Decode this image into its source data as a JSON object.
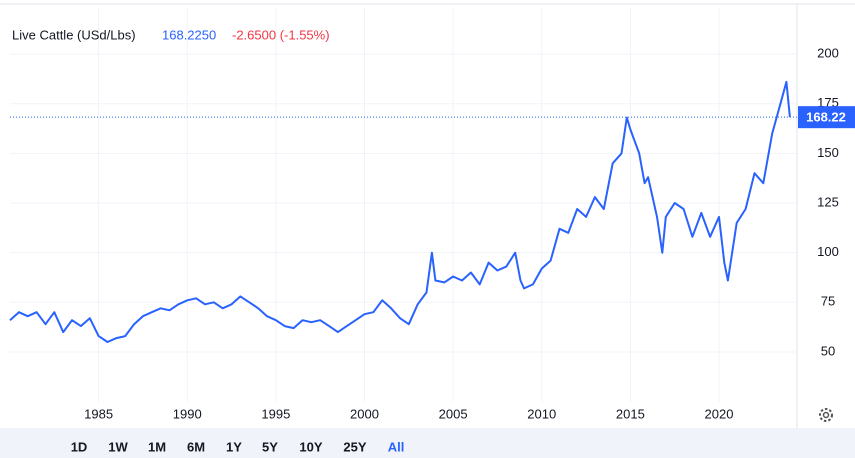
{
  "chart_data": {
    "type": "line",
    "title": "Live Cattle (USd/Lbs)",
    "quote_price": "168.2250",
    "quote_change": "-2.6500 (-1.55%)",
    "x": [
      1980,
      1980.5,
      1981,
      1981.5,
      1982,
      1982.5,
      1983,
      1983.5,
      1984,
      1984.5,
      1985,
      1985.5,
      1986,
      1986.5,
      1987,
      1987.5,
      1988,
      1988.5,
      1989,
      1989.5,
      1990,
      1990.5,
      1991,
      1991.5,
      1992,
      1992.5,
      1993,
      1993.5,
      1994,
      1994.5,
      1995,
      1995.5,
      1996,
      1996.5,
      1997,
      1997.5,
      1998,
      1998.5,
      1999,
      1999.5,
      2000,
      2000.5,
      2001,
      2001.5,
      2002,
      2002.5,
      2003,
      2003.5,
      2003.8,
      2004,
      2004.5,
      2005,
      2005.5,
      2006,
      2006.5,
      2007,
      2007.5,
      2008,
      2008.5,
      2008.8,
      2009,
      2009.5,
      2010,
      2010.5,
      2011,
      2011.5,
      2012,
      2012.5,
      2013,
      2013.5,
      2014,
      2014.5,
      2014.8,
      2015,
      2015.5,
      2015.8,
      2016,
      2016.5,
      2016.8,
      2017,
      2017.5,
      2018,
      2018.5,
      2019,
      2019.5,
      2020,
      2020.3,
      2020.5,
      2021,
      2021.5,
      2022,
      2022.5,
      2023,
      2023.5,
      2023.8,
      2024
    ],
    "series": [
      {
        "name": "Live Cattle",
        "color": "#2962ff",
        "values": [
          66,
          70,
          68,
          70,
          64,
          70,
          60,
          66,
          63,
          67,
          58,
          55,
          57,
          58,
          64,
          68,
          70,
          72,
          71,
          74,
          76,
          77,
          74,
          75,
          72,
          74,
          78,
          75,
          72,
          68,
          66,
          63,
          62,
          66,
          65,
          66,
          63,
          60,
          63,
          66,
          69,
          70,
          76,
          72,
          67,
          64,
          74,
          80,
          100,
          86,
          85,
          88,
          86,
          90,
          84,
          95,
          91,
          93,
          100,
          86,
          82,
          84,
          92,
          96,
          112,
          110,
          122,
          118,
          128,
          122,
          145,
          150,
          168,
          162,
          150,
          135,
          138,
          118,
          100,
          118,
          125,
          122,
          108,
          120,
          108,
          118,
          95,
          86,
          115,
          122,
          140,
          135,
          160,
          176,
          186,
          168.225
        ]
      }
    ],
    "current_value": {
      "value": 168.225,
      "label": "168.22"
    },
    "xlim": [
      1980,
      2024.4
    ],
    "ylim": [
      24.8,
      223.2
    ],
    "xticks": [
      1985,
      1990,
      1995,
      2000,
      2005,
      2010,
      2015,
      2020
    ],
    "yticks": [
      50,
      75,
      100,
      125,
      150,
      175,
      200
    ],
    "grid": true
  },
  "range_buttons": [
    "1D",
    "1W",
    "1M",
    "6M",
    "1Y",
    "5Y",
    "10Y",
    "25Y",
    "All"
  ]
}
